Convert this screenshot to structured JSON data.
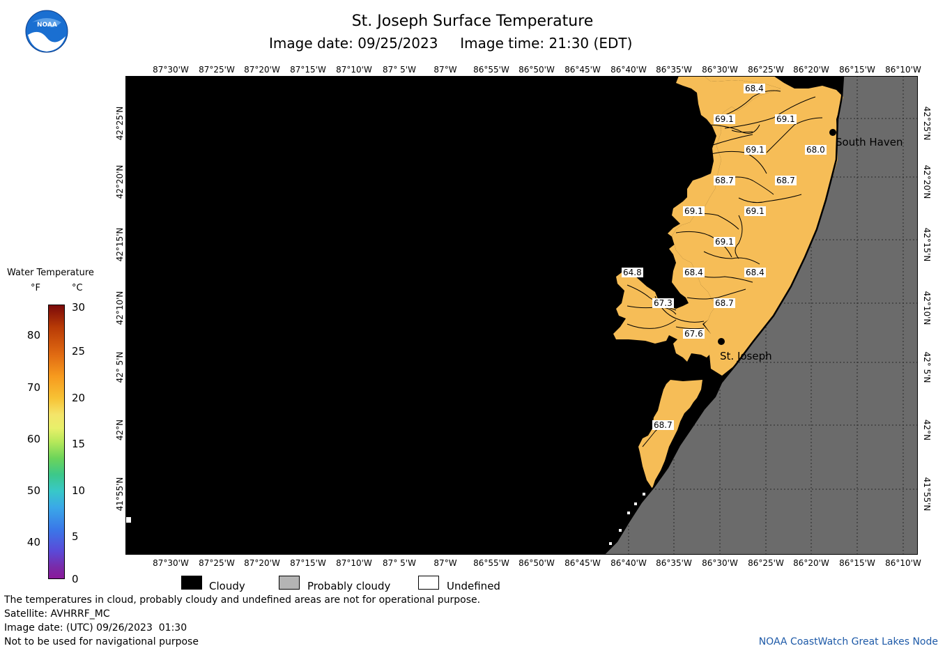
{
  "header": {
    "title": "St. Joseph Surface Temperature",
    "subtitle": "Image date: 09/25/2023     Image time: 21:30 (EDT)"
  },
  "logo": {
    "text": "NOAA",
    "icon": "noaa-logo"
  },
  "axes": {
    "lon_labels": [
      "87°30'W",
      "87°25'W",
      "87°20'W",
      "87°15'W",
      "87°10'W",
      "87° 5'W",
      "87°W",
      "86°55'W",
      "86°50'W",
      "86°45'W",
      "86°40'W",
      "86°35'W",
      "86°30'W",
      "86°25'W",
      "86°20'W",
      "86°15'W",
      "86°10'W"
    ],
    "lat_labels": [
      "42°25'N",
      "42°20'N",
      "42°15'N",
      "42°10'N",
      "42° 5'N",
      "42°N",
      "41°55'N"
    ]
  },
  "legend": {
    "title": "Water Temperature",
    "unit_f": "°F",
    "unit_c": "°C",
    "f_ticks": [
      "80",
      "70",
      "60",
      "50",
      "40"
    ],
    "c_ticks": [
      "30",
      "25",
      "20",
      "15",
      "10",
      "5",
      "0"
    ]
  },
  "map": {
    "temperature_labels": [
      "68.4",
      "69.1",
      "69.1",
      "69.1",
      "68.0",
      "68.7",
      "68.7",
      "69.1",
      "69.1",
      "69.1",
      "64.8",
      "68.4",
      "68.4",
      "67.3",
      "68.7",
      "67.6",
      "68.7"
    ],
    "cities": [
      "South Haven",
      "St. Joseph"
    ],
    "colors": {
      "cloudy": "#000000",
      "land": "#6b6b6b",
      "water_warm": "#f6bd57",
      "undefined": "#ffffff"
    }
  },
  "key": {
    "cloudy": "Cloudy",
    "probably_cloudy": "Probably cloudy",
    "undefined": "Undefined"
  },
  "footer": {
    "note": "The temperatures in cloud, probably cloudy and undefined areas are not for operational purpose.",
    "satellite": "Satellite: AVHRRF_MC",
    "utc_date": "Image date: (UTC) 09/26/2023  01:30",
    "disclaimer": "Not to be used for navigational purpose",
    "credit": "NOAA CoastWatch Great Lakes Node"
  }
}
